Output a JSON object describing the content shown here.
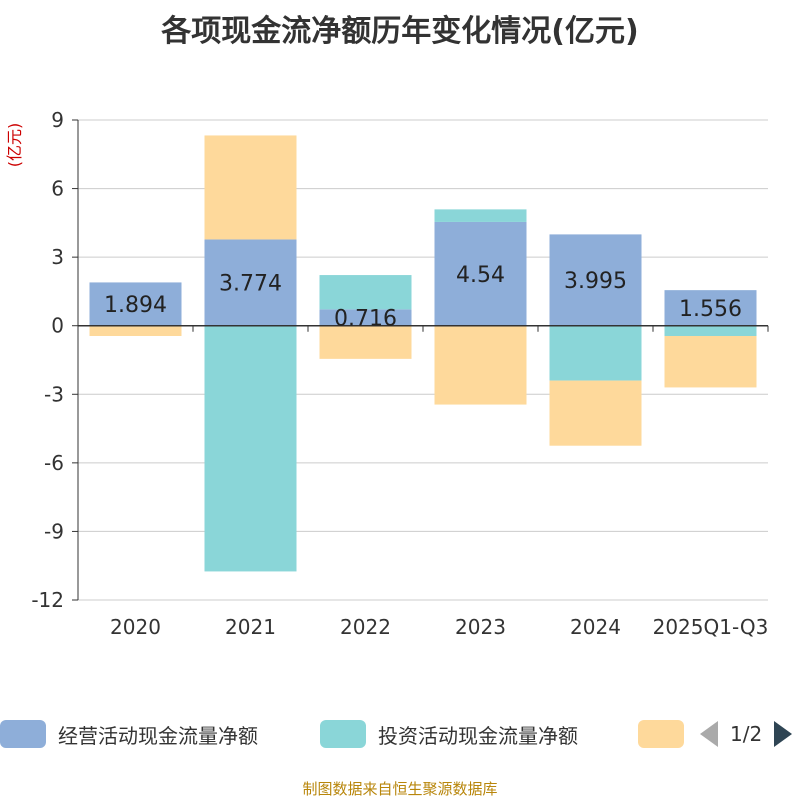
{
  "chart_data": {
    "type": "bar",
    "stacked": true,
    "title": "各项现金流净额历年变化情况(亿元)",
    "ylabel": "(亿元)",
    "ylim": [
      -12,
      9
    ],
    "yticks": [
      9,
      6,
      3,
      0,
      -3,
      -6,
      -9,
      -12
    ],
    "categories": [
      "2020",
      "2021",
      "2022",
      "2023",
      "2024",
      "2025Q1-Q3"
    ],
    "series": [
      {
        "name": "经营活动现金流量净额",
        "color": "#8eaed9",
        "values": [
          1.894,
          3.774,
          0.716,
          4.54,
          3.995,
          1.556
        ],
        "labels": [
          "1.894",
          "3.774",
          "0.716",
          "4.54",
          "3.995",
          "1.556"
        ]
      },
      {
        "name": "投资活动现金流量净额",
        "color": "#8ad6d8",
        "values": [
          0.0,
          -10.75,
          1.5,
          0.55,
          -2.4,
          -0.45
        ]
      },
      {
        "name": "",
        "color": "#fed99b",
        "values": [
          -0.45,
          4.55,
          -1.45,
          -3.45,
          -2.85,
          -2.25
        ]
      }
    ]
  },
  "legend": {
    "items": [
      {
        "label": "经营活动现金流量净额",
        "color": "#8eaed9"
      },
      {
        "label": "投资活动现金流量净额",
        "color": "#8ad6d8"
      },
      {
        "label": "",
        "color": "#fed99b"
      }
    ],
    "page_text": "1/2"
  },
  "source": "制图数据来自恒生聚源数据库"
}
